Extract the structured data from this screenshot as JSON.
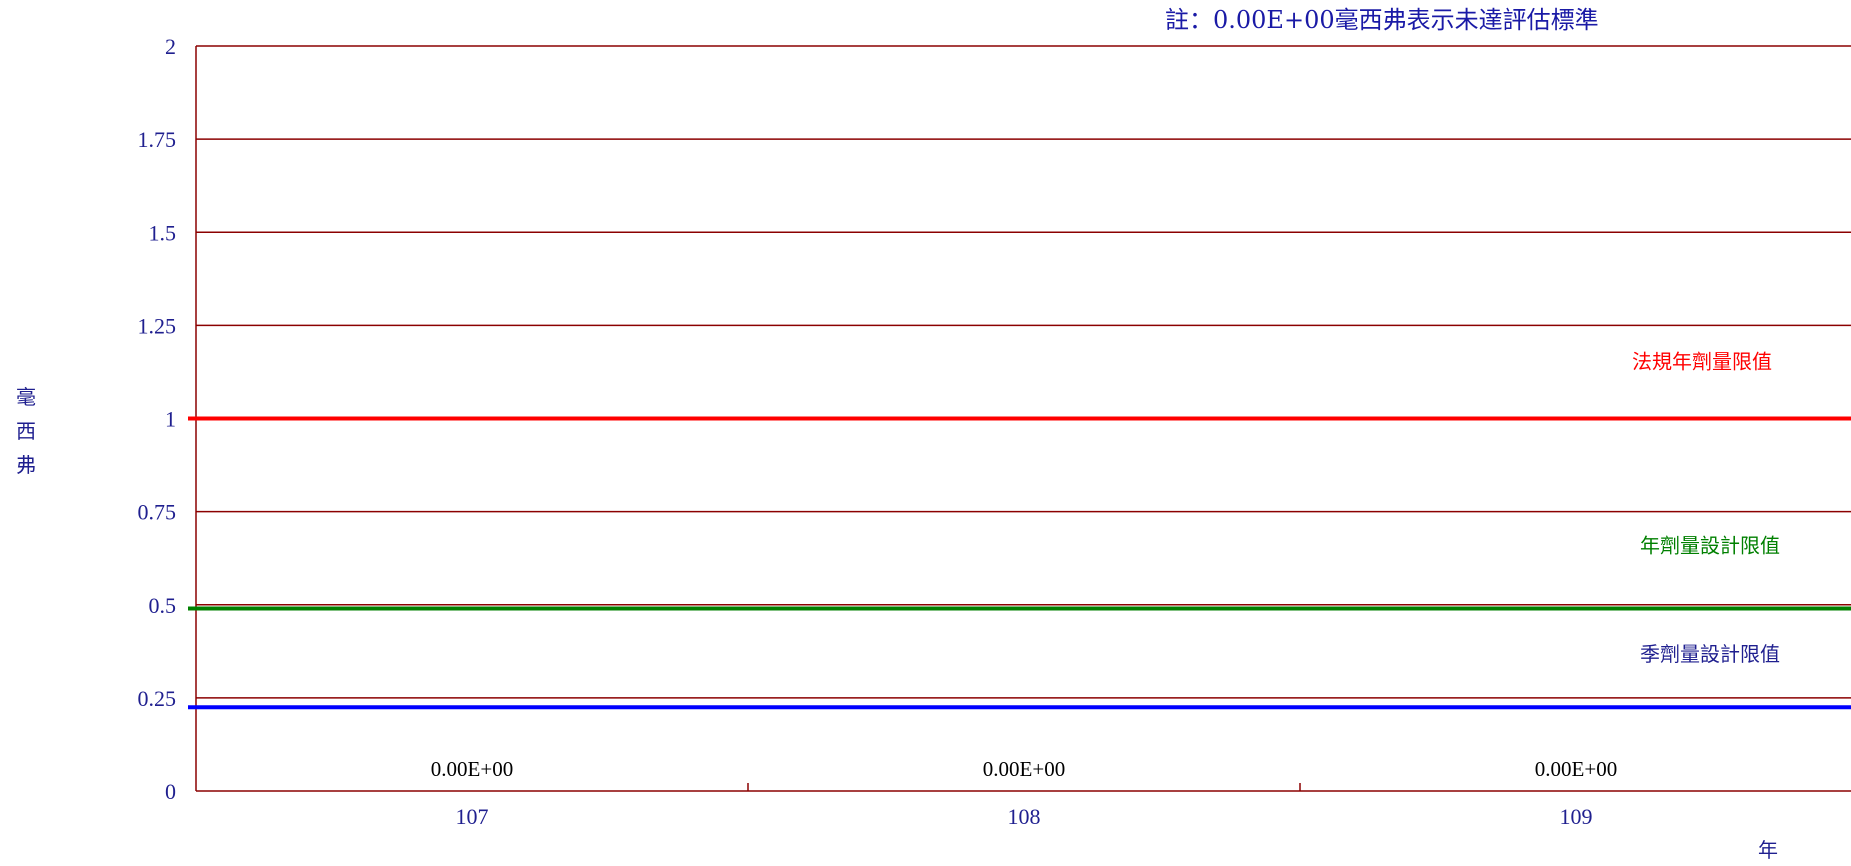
{
  "chart_data": {
    "type": "bar",
    "title": "",
    "note": "註：0.00E+00毫西弗表示未達評估標準",
    "ylabel": "毫西弗",
    "xlabel": "年",
    "categories": [
      "107",
      "108",
      "109"
    ],
    "values": [
      0,
      0,
      0
    ],
    "value_labels": [
      "0.00E+00",
      "0.00E+00",
      "0.00E+00"
    ],
    "ylim": [
      0,
      2
    ],
    "yticks": [
      0,
      0.25,
      0.5,
      0.75,
      1,
      1.25,
      1.5,
      1.75,
      2
    ],
    "ytick_labels": [
      "0",
      "0.25",
      "0.5",
      "0.75",
      "1",
      "1.25",
      "1.5",
      "1.75",
      "2"
    ],
    "grid": true,
    "reference_lines": [
      {
        "name": "法規年劑量限值",
        "value": 1.0,
        "color": "#ff0000"
      },
      {
        "name": "年劑量設計限值",
        "value": 0.49,
        "color": "#008000"
      },
      {
        "name": "季劑量設計限值",
        "value": 0.225,
        "color": "#0000ff"
      }
    ],
    "colors": {
      "grid": "#8b0000",
      "axis": "#8b0000",
      "tick_text": "#1f1f8f",
      "note_text": "#1a1aa6",
      "ref_label_quarter": "#1f1f8f"
    }
  }
}
